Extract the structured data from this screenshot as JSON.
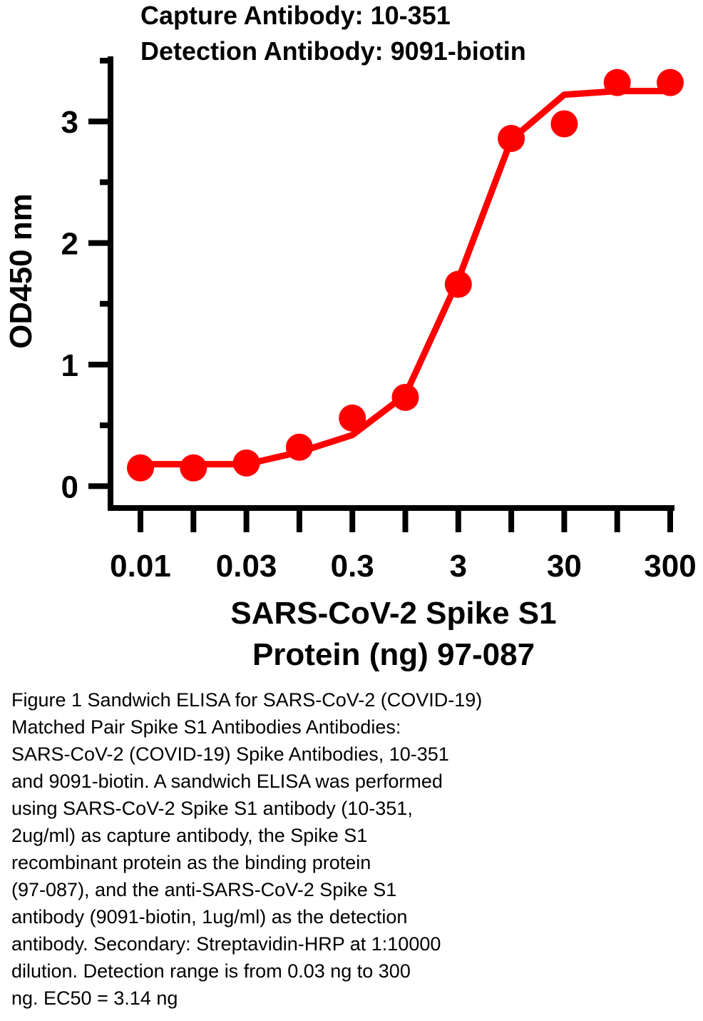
{
  "chart_data": {
    "type": "line",
    "title": [
      "Capture Antibody: 10-351",
      "Detection Antibody: 9091-biotin"
    ],
    "xlabel": [
      "SARS-CoV-2 Spike S1",
      "Protein (ng) 97-087"
    ],
    "ylabel": "OD450 nm",
    "categories": [
      "0.01",
      null,
      "0.03",
      null,
      "0.3",
      null,
      "3",
      null,
      "30",
      null,
      "300"
    ],
    "series": [
      {
        "name": "Data",
        "color": "#ff0000",
        "values": [
          0.15,
          0.15,
          0.19,
          0.32,
          0.56,
          0.73,
          1.66,
          2.86,
          2.98,
          3.32,
          3.32
        ]
      },
      {
        "name": "Fit",
        "color": "#ff0000",
        "values": [
          0.18,
          0.18,
          0.18,
          0.28,
          0.42,
          0.75,
          1.7,
          2.85,
          3.22,
          3.25,
          3.25
        ]
      }
    ],
    "ylim": [
      -0.18,
      3.5
    ],
    "yticks": [
      0,
      1,
      2,
      3
    ],
    "yminorticks": [
      0.5,
      1.5,
      2.5,
      3.5
    ]
  },
  "caption": [
    "Figure 1 Sandwich ELISA for SARS-CoV-2 (COVID-19)",
    "Matched Pair Spike S1 Antibodies Antibodies:",
    "SARS-CoV-2 (COVID-19) Spike Antibodies, 10-351",
    "and 9091-biotin. A sandwich ELISA was performed",
    "using SARS-CoV-2 Spike S1 antibody (10-351,",
    "2ug/ml) as capture antibody, the Spike S1",
    "recombinant protein as the binding protein",
    "(97-087), and the anti-SARS-CoV-2 Spike S1",
    "antibody (9091-biotin, 1ug/ml) as the detection",
    "antibody. Secondary: Streptavidin-HRP at 1:10000",
    "dilution. Detection range is from 0.03 ng to 300",
    "ng. EC50 = 3.14 ng"
  ]
}
